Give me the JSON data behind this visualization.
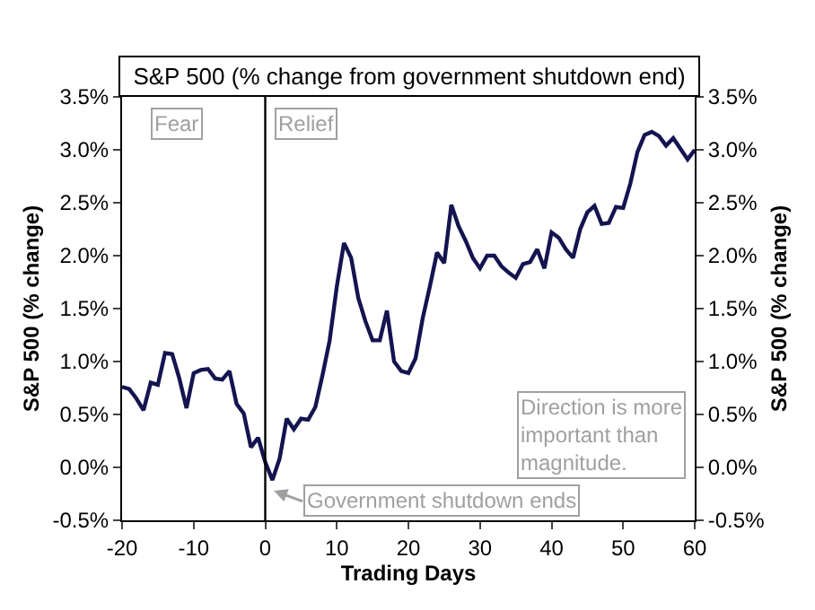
{
  "chart_data": {
    "type": "line",
    "title": "S&P 500 (% change from government shutdown end)",
    "xlabel": "Trading Days",
    "ylabel": "S&P 500 (% change)",
    "y2label": "S&P 500 (% change)",
    "x": [
      -20,
      -19,
      -18,
      -17,
      -16,
      -15,
      -14,
      -13,
      -12,
      -11,
      -10,
      -9,
      -8,
      -7,
      -6,
      -5,
      -4,
      -3,
      -2,
      -1,
      0,
      1,
      2,
      3,
      4,
      5,
      6,
      7,
      8,
      9,
      10,
      11,
      12,
      13,
      14,
      15,
      16,
      17,
      18,
      19,
      20,
      21,
      22,
      23,
      24,
      25,
      26,
      27,
      28,
      29,
      30,
      31,
      32,
      33,
      34,
      35,
      36,
      37,
      38,
      39,
      40,
      41,
      42,
      43,
      44,
      45,
      46,
      47,
      48,
      49,
      50,
      51,
      52,
      53,
      54,
      55,
      56,
      57,
      58,
      59,
      60
    ],
    "series": [
      {
        "color": "#141450",
        "values": [
          0.76,
          0.74,
          0.65,
          0.54,
          0.8,
          0.78,
          1.08,
          1.07,
          0.84,
          0.56,
          0.89,
          0.92,
          0.93,
          0.84,
          0.83,
          0.91,
          0.6,
          0.51,
          0.19,
          0.28,
          0.05,
          -0.12,
          0.08,
          0.46,
          0.36,
          0.46,
          0.45,
          0.57,
          0.87,
          1.2,
          1.71,
          2.12,
          1.98,
          1.6,
          1.38,
          1.2,
          1.2,
          1.48,
          1.0,
          0.91,
          0.89,
          1.03,
          1.41,
          1.71,
          2.03,
          1.93,
          2.48,
          2.28,
          2.14,
          1.98,
          1.88,
          2.0,
          2.0,
          1.9,
          1.84,
          1.79,
          1.92,
          1.94,
          2.06,
          1.88,
          2.22,
          2.17,
          2.06,
          1.98,
          2.25,
          2.41,
          2.47,
          2.3,
          2.31,
          2.46,
          2.45,
          2.68,
          2.98,
          3.14,
          3.17,
          3.13,
          3.04,
          3.11,
          3.01,
          2.91,
          3.0
        ]
      }
    ],
    "xlim": [
      -20,
      60
    ],
    "xticks": [
      -20,
      -10,
      0,
      10,
      20,
      30,
      40,
      50,
      60
    ],
    "ylim": [
      -0.5,
      3.5
    ],
    "yticks": [
      {
        "value": -0.5,
        "label": "-0.5%"
      },
      {
        "value": 0,
        "label": "0.0%"
      },
      {
        "value": 0.5,
        "label": "0.5%"
      },
      {
        "value": 1,
        "label": "1.0%"
      },
      {
        "value": 1.5,
        "label": "1.5%"
      },
      {
        "value": 2,
        "label": "2.0%"
      },
      {
        "value": 2.5,
        "label": "2.5%"
      },
      {
        "value": 3,
        "label": "3.0%"
      },
      {
        "value": 3.5,
        "label": "3.5%"
      }
    ],
    "y2lim": [
      -0.5,
      3.5
    ],
    "y2ticks": [
      {
        "value": -0.5,
        "label": "-0.5%"
      },
      {
        "value": 0,
        "label": "0.0%"
      },
      {
        "value": 0.5,
        "label": "0.5%"
      },
      {
        "value": 1,
        "label": "1.0%"
      },
      {
        "value": 1.5,
        "label": "1.5%"
      },
      {
        "value": 2,
        "label": "2.0%"
      },
      {
        "value": 2.5,
        "label": "2.5%"
      },
      {
        "value": 3,
        "label": "3.0%"
      },
      {
        "value": 3.5,
        "label": "3.5%"
      }
    ],
    "ref_lines": [
      {
        "axis": "x",
        "value": 0,
        "color": "#000000"
      }
    ],
    "annotations": [
      "Fear",
      "Relief",
      "Direction is more important than magnitude.",
      "Government shutdown ends"
    ],
    "marker": "none",
    "line_style": "solid"
  }
}
